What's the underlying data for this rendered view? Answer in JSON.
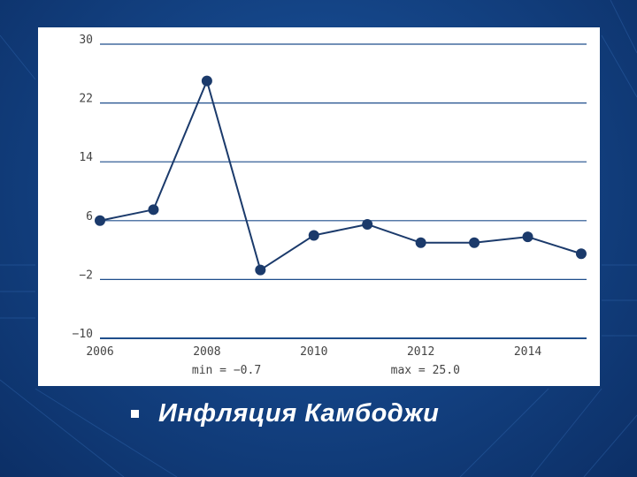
{
  "slide": {
    "caption": "Инфляция Камбоджи"
  },
  "chart_data": {
    "type": "line",
    "x": [
      2006,
      2007,
      2008,
      2009,
      2010,
      2011,
      2012,
      2013,
      2014,
      2015
    ],
    "y": [
      6.0,
      7.5,
      25.0,
      -0.7,
      4.0,
      5.5,
      3.0,
      3.0,
      3.8,
      1.5
    ],
    "xlim": [
      2006,
      2015.1
    ],
    "ylim": [
      -10,
      30
    ],
    "yticks": [
      30,
      22,
      14,
      6,
      -2,
      -10
    ],
    "xticks": [
      2006,
      2008,
      2010,
      2012,
      2014
    ],
    "ytick_labels": [
      "30",
      "22",
      "14",
      "6",
      "−2",
      "−10"
    ],
    "xtick_labels": [
      "2006",
      "2008",
      "2010",
      "2012",
      "2014"
    ],
    "min_label": "min = −0.7",
    "max_label": "max = 25.0",
    "grid": true,
    "colors": {
      "line": "#1b3a6b",
      "grid": "#1f4e8c",
      "panel": "#ffffff"
    }
  }
}
